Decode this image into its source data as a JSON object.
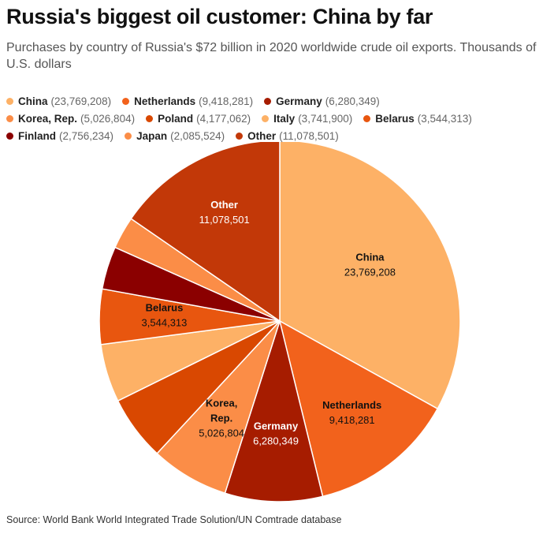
{
  "title": "Russia's biggest oil customer: China by far",
  "subtitle": "Purchases by country of Russia's $72 billion in 2020 worldwide crude oil exports. Thousands of U.S. dollars",
  "source": "Source: World Bank World Integrated Trade Solution/UN Comtrade database",
  "legend": [
    [
      {
        "name": "China",
        "value": "(23,769,208)",
        "color": "#fdb166"
      },
      {
        "name": "Netherlands",
        "value": "(9,418,281)",
        "color": "#f2621c"
      },
      {
        "name": "Germany",
        "value": "(6,280,349)",
        "color": "#a61c00"
      }
    ],
    [
      {
        "name": "Korea, Rep.",
        "value": "(5,026,804)",
        "color": "#fb8d47"
      },
      {
        "name": "Poland",
        "value": "(4,177,062)",
        "color": "#d94801"
      },
      {
        "name": "Italy",
        "value": "(3,741,900)",
        "color": "#fdb166"
      },
      {
        "name": "Belarus",
        "value": "(3,544,313)",
        "color": "#e8560f"
      }
    ],
    [
      {
        "name": "Finland",
        "value": "(2,756,234)",
        "color": "#8b0000"
      },
      {
        "name": "Japan",
        "value": "(2,085,524)",
        "color": "#fb8d47"
      },
      {
        "name": "Other",
        "value": "(11,078,501)",
        "color": "#c23808"
      }
    ]
  ],
  "chart_data": {
    "type": "pie",
    "title": "Russia's biggest oil customer: China by far",
    "slices": [
      {
        "name": "China",
        "value": 23769208,
        "color": "#fdb166",
        "label_name": "China",
        "label_value": "23,769,208"
      },
      {
        "name": "Netherlands",
        "value": 9418281,
        "color": "#f2621c",
        "label_name": "Netherlands",
        "label_value": "9,418,281"
      },
      {
        "name": "Germany",
        "value": 6280349,
        "color": "#a61c00",
        "label_name": "Germany",
        "label_value": "6,280,349"
      },
      {
        "name": "Korea, Rep.",
        "value": 5026804,
        "color": "#fb8d47",
        "label_name": "Korea,|Rep.",
        "label_value": "5,026,804"
      },
      {
        "name": "Poland",
        "value": 4177062,
        "color": "#d94801"
      },
      {
        "name": "Italy",
        "value": 3741900,
        "color": "#fdb166"
      },
      {
        "name": "Belarus",
        "value": 3544313,
        "color": "#e8560f",
        "label_name": "Belarus",
        "label_value": "3,544,313"
      },
      {
        "name": "Finland",
        "value": 2756234,
        "color": "#8b0000"
      },
      {
        "name": "Japan",
        "value": 2085524,
        "color": "#fb8d47"
      },
      {
        "name": "Other",
        "value": 11078501,
        "color": "#c23808",
        "label_name": "Other",
        "label_value": "11,078,501"
      }
    ]
  }
}
